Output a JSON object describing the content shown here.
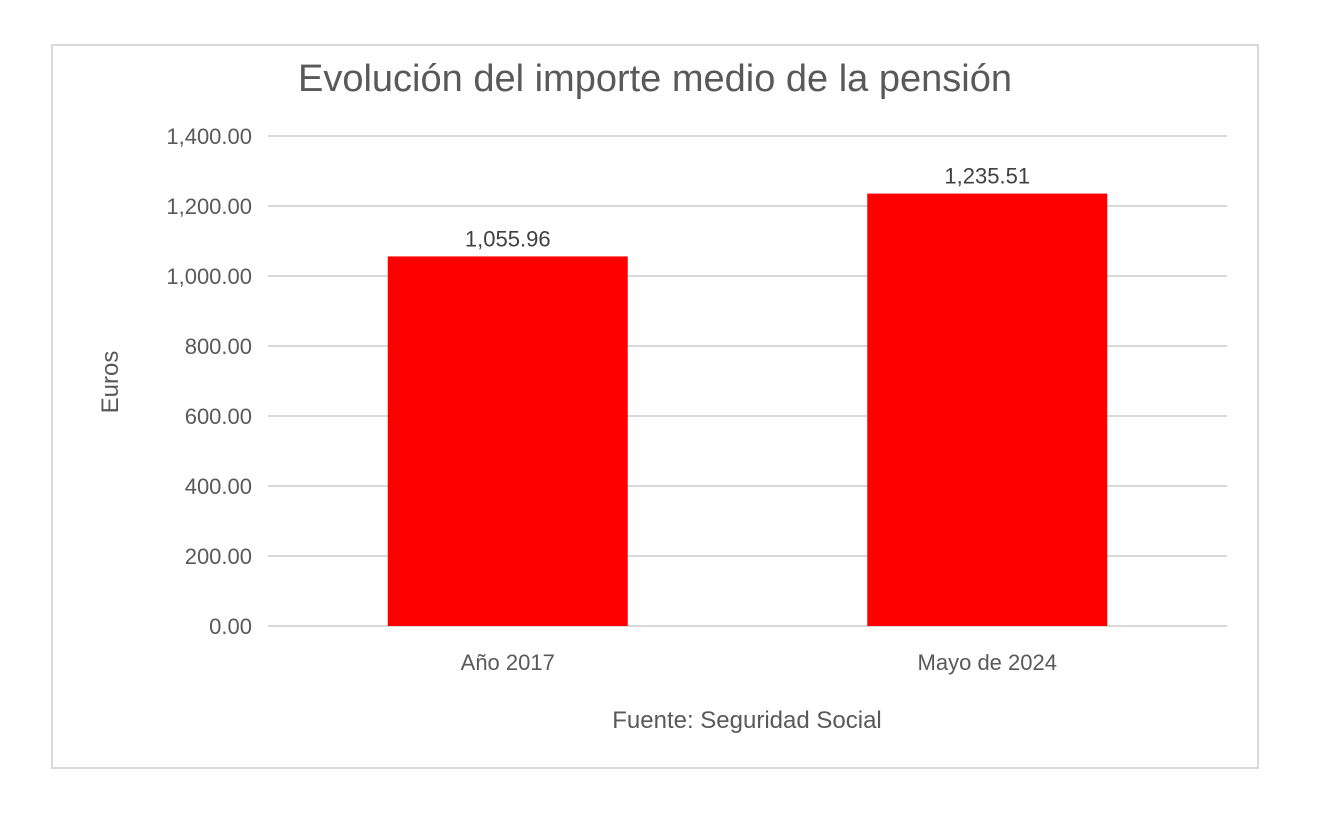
{
  "chart_data": {
    "type": "bar",
    "title": "Evolución del importe medio de la pensión",
    "categories": [
      "Año 2017",
      "Mayo de 2024"
    ],
    "values": [
      1055.96,
      1235.51
    ],
    "data_labels": [
      "1,055.96",
      "1,235.51"
    ],
    "ylabel": "Euros",
    "xlabel": "Fuente: Seguridad Social",
    "ylim": [
      0,
      1400
    ],
    "yticks": [
      0,
      200,
      400,
      600,
      800,
      1000,
      1200,
      1400
    ],
    "ytick_labels": [
      "0.00",
      "200.00",
      "400.00",
      "600.00",
      "800.00",
      "1,000.00",
      "1,200.00",
      "1,400.00"
    ],
    "grid": true,
    "bar_color": "#ff0000"
  }
}
